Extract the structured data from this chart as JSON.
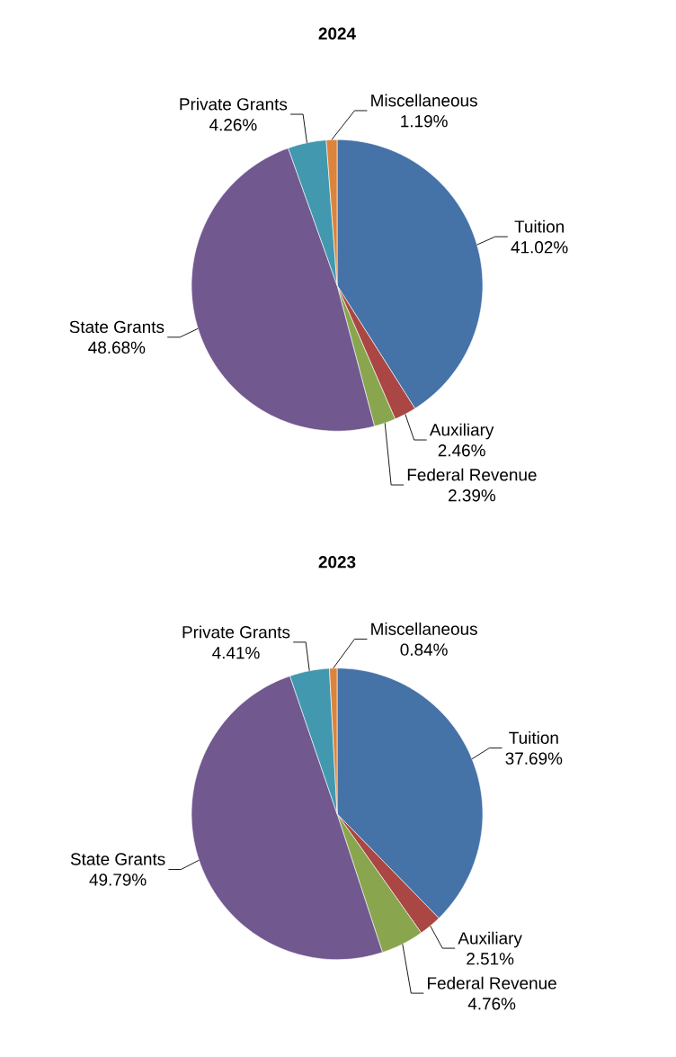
{
  "chart_data": [
    {
      "type": "pie",
      "title": "2024",
      "categories": [
        "Tuition",
        "Auxiliary",
        "Federal Revenue",
        "State Grants",
        "Private Grants",
        "Miscellaneous"
      ],
      "values": [
        41.02,
        2.46,
        2.39,
        48.68,
        4.26,
        1.19
      ],
      "value_labels": [
        "41.02%",
        "2.46%",
        "2.39%",
        "48.68%",
        "4.26%",
        "1.19%"
      ],
      "colors": [
        "#4572a7",
        "#aa4643",
        "#89a54e",
        "#71588f",
        "#4198af",
        "#db843d"
      ]
    },
    {
      "type": "pie",
      "title": "2023",
      "categories": [
        "Tuition",
        "Auxiliary",
        "Federal Revenue",
        "State Grants",
        "Private Grants",
        "Miscellaneous"
      ],
      "values": [
        37.69,
        2.51,
        4.76,
        49.79,
        4.41,
        0.84
      ],
      "value_labels": [
        "37.69%",
        "2.51%",
        "4.76%",
        "49.79%",
        "4.41%",
        "0.84%"
      ],
      "colors": [
        "#4572a7",
        "#aa4643",
        "#89a54e",
        "#71588f",
        "#4198af",
        "#db843d"
      ]
    }
  ]
}
